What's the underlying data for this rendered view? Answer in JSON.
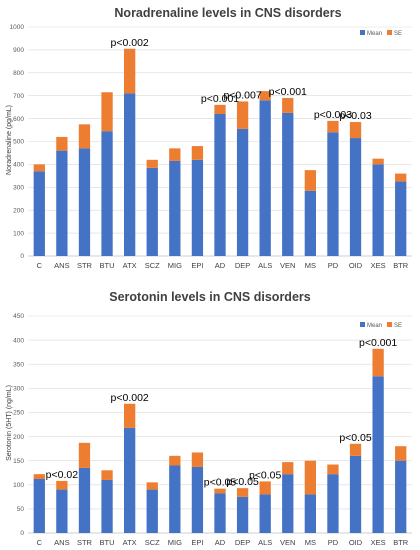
{
  "colors": {
    "mean": "#4472c4",
    "se": "#ed7d31"
  },
  "chart_data": [
    {
      "type": "bar",
      "stacked": true,
      "title": "Noradrenaline levels in CNS disorders",
      "ylabel": "Noradrenaline (pg/mL)",
      "xlabel": "",
      "ylim": [
        0,
        1000
      ],
      "yticks": [
        0,
        100,
        200,
        300,
        400,
        500,
        600,
        700,
        800,
        900,
        1000
      ],
      "grid": true,
      "legend_position": "top-right",
      "categories": [
        "C",
        "ANS",
        "STR",
        "BTU",
        "ATX",
        "SCZ",
        "MIG",
        "EPI",
        "AD",
        "DEP",
        "ALS",
        "VEN",
        "MS",
        "PD",
        "OID",
        "XES",
        "BTR"
      ],
      "series": [
        {
          "name": "Mean",
          "values": [
            370,
            460,
            470,
            545,
            710,
            385,
            415,
            420,
            620,
            555,
            680,
            625,
            285,
            540,
            515,
            400,
            325
          ]
        },
        {
          "name": "SE",
          "values": [
            30,
            60,
            105,
            170,
            195,
            35,
            55,
            60,
            40,
            120,
            40,
            65,
            90,
            50,
            70,
            25,
            35
          ]
        }
      ],
      "annotations": [
        {
          "category": "ATX",
          "text": "p<0.002"
        },
        {
          "category": "AD",
          "text": "p<0.001"
        },
        {
          "category": "DEP",
          "text": "p<0.007"
        },
        {
          "category": "VEN",
          "text": "p<0.001"
        },
        {
          "category": "PD",
          "text": "p<0.003"
        },
        {
          "category": "OID",
          "text": "p<0.03"
        }
      ]
    },
    {
      "type": "bar",
      "stacked": true,
      "title": "Serotonin levels in CNS disorders",
      "ylabel": "Serotonin (5HT) (ng/mL)",
      "xlabel": "",
      "ylim": [
        0,
        450
      ],
      "yticks": [
        0,
        50,
        100,
        150,
        200,
        250,
        300,
        350,
        400,
        450
      ],
      "grid": true,
      "legend_position": "top-right",
      "categories": [
        "C",
        "ANS",
        "STR",
        "BTU",
        "ATX",
        "SCZ",
        "MIG",
        "EPI",
        "AD",
        "DEP",
        "ALS",
        "VEN",
        "MS",
        "PD",
        "OID",
        "XES",
        "BTR"
      ],
      "series": [
        {
          "name": "Mean",
          "values": [
            112,
            90,
            135,
            110,
            218,
            90,
            140,
            137,
            82,
            75,
            80,
            122,
            80,
            122,
            160,
            325,
            150
          ]
        },
        {
          "name": "SE",
          "values": [
            10,
            18,
            52,
            20,
            50,
            15,
            20,
            30,
            10,
            18,
            27,
            25,
            70,
            20,
            25,
            57,
            30
          ]
        }
      ],
      "annotations": [
        {
          "category": "ANS",
          "text": "p<0.02"
        },
        {
          "category": "ATX",
          "text": "p<0.002"
        },
        {
          "category": "AD",
          "text": "p<0.05"
        },
        {
          "category": "DEP",
          "text": "p<0.05"
        },
        {
          "category": "ALS",
          "text": "p<0.05"
        },
        {
          "category": "OID",
          "text": "p<0.05"
        },
        {
          "category": "XES",
          "text": "p<0.001"
        }
      ]
    }
  ]
}
